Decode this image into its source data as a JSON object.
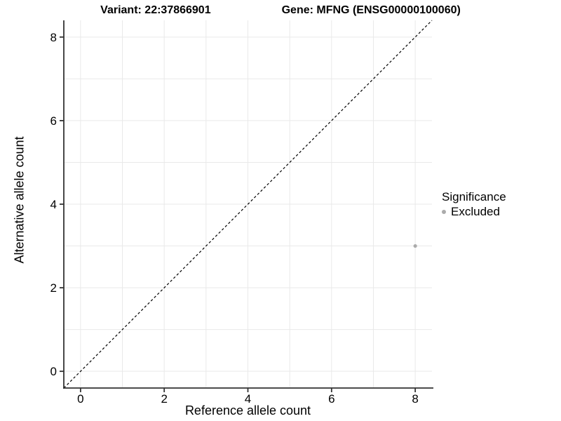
{
  "title": {
    "variant": "Variant: 22:37866901",
    "gene": "Gene: MFNG (ENSG00000100060)"
  },
  "axes": {
    "x_label": "Reference allele count",
    "y_label": "Alternative allele count"
  },
  "legend": {
    "title": "Significance",
    "items": [
      {
        "label": "Excluded",
        "color": "#ababab"
      }
    ]
  },
  "chart_data": {
    "type": "scatter",
    "title": "Variant: 22:37866901   Gene: MFNG (ENSG00000100060)",
    "xlabel": "Reference allele count",
    "ylabel": "Alternative allele count",
    "xlim": [
      -0.4,
      8.4
    ],
    "ylim": [
      -0.4,
      8.4
    ],
    "x_ticks": [
      0,
      2,
      4,
      6,
      8
    ],
    "y_ticks": [
      0,
      2,
      4,
      6,
      8
    ],
    "grid_breaks": [
      0,
      1,
      2,
      3,
      4,
      5,
      6,
      7,
      8
    ],
    "grid": "on",
    "legend_position": "right",
    "series": [
      {
        "name": "Excluded",
        "color": "#ababab",
        "points": [
          {
            "x": 8,
            "y": 3
          }
        ]
      }
    ],
    "reference_line": {
      "type": "identity y=x",
      "style": "dashed",
      "color": "#000000"
    }
  },
  "colors": {
    "background": "#ffffff",
    "gridline": "#e9e9e9",
    "axis_line": "#333333",
    "tick_label": "#000000",
    "point": "#ababab"
  }
}
